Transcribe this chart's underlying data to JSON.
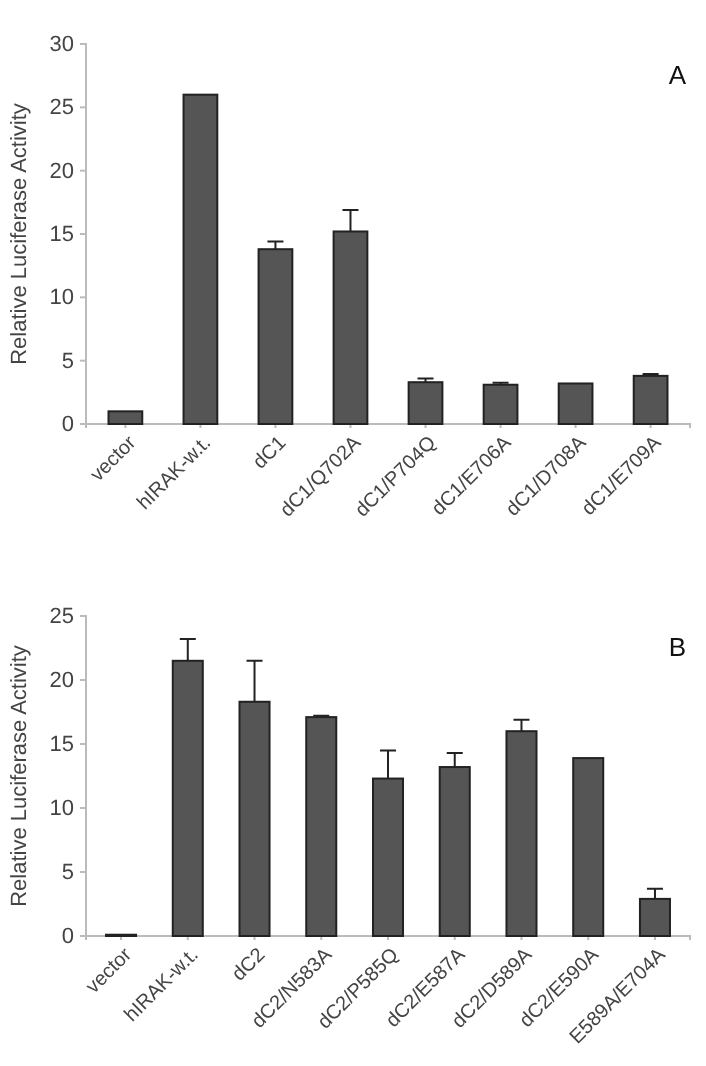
{
  "chart_data": [
    {
      "type": "bar",
      "ylabel": "Relative Luciferase Activity",
      "annotations": [
        "A"
      ],
      "categories": [
        "vector",
        "hIRAK-w.t.",
        "dC1",
        "dC1/Q702A",
        "dC1/P704Q",
        "dC1/E706A",
        "dC1/D708A",
        "dC1/E709A"
      ],
      "values": [
        1,
        26,
        13.8,
        15.2,
        3.3,
        3.1,
        3.2,
        3.8
      ],
      "errors": [
        null,
        null,
        [
          13.8,
          14.4
        ],
        [
          15.2,
          16.9
        ],
        [
          3.3,
          3.6
        ],
        [
          3.1,
          3.25
        ],
        null,
        [
          3.8,
          3.95
        ]
      ],
      "color": "#555555",
      "ylim": [
        0,
        30
      ],
      "yticks": [
        0,
        5,
        10,
        15,
        20,
        25,
        30
      ],
      "grid": false
    },
    {
      "type": "bar",
      "ylabel": "Relative Luciferase Activity",
      "annotations": [
        "B"
      ],
      "categories": [
        "vector",
        "hIRAK-w.t.",
        "dC2",
        "dC2/N583A",
        "dC2/P585Q",
        "dC2/E587A",
        "dC2/D589A",
        "dC2/E590A",
        "E589A/E704A"
      ],
      "values": [
        0.1,
        21.5,
        18.3,
        17.1,
        12.3,
        13.2,
        16,
        13.9,
        2.9
      ],
      "errors": [
        null,
        [
          21.5,
          23.2
        ],
        [
          18.3,
          21.5
        ],
        [
          17.1,
          17.2
        ],
        [
          12.3,
          14.5
        ],
        [
          13.2,
          14.3
        ],
        [
          16,
          16.9
        ],
        null,
        [
          2.9,
          3.7
        ]
      ],
      "color": "#555555",
      "ylim": [
        0,
        25
      ],
      "yticks": [
        0,
        5,
        10,
        15,
        20,
        25
      ],
      "grid": false
    }
  ]
}
